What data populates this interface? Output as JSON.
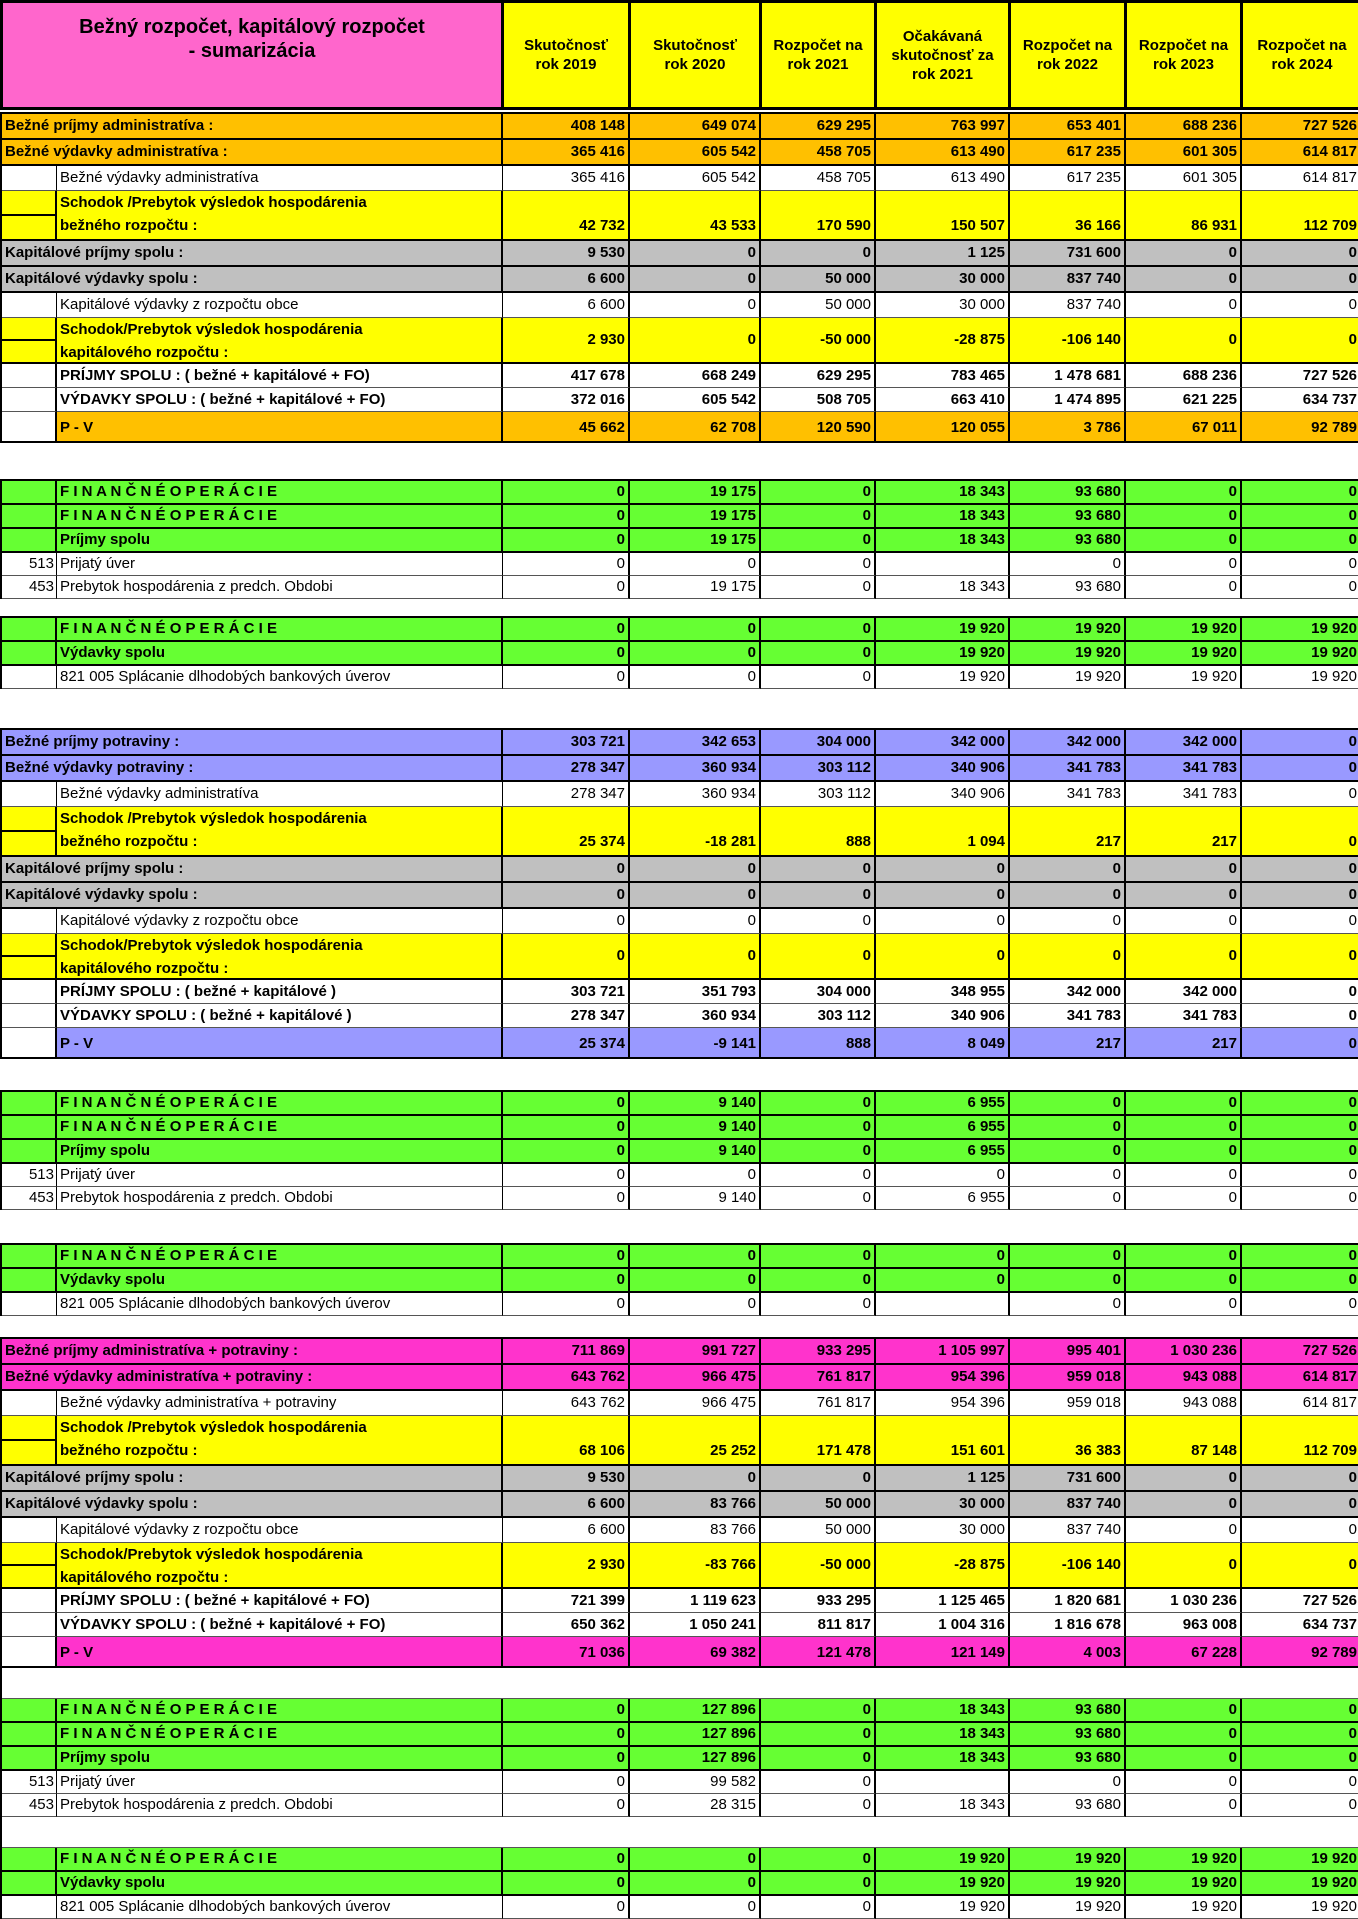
{
  "header": {
    "title": "Bežný rozpočet, kapitálový rozpočet\n -  sumarizácia",
    "columns": [
      "Skutočnosť\nrok 2019",
      "Skutočnosť\nrok 2020",
      "Rozpočet na\nrok 2021",
      "Očakávaná\nskutočnosť za\nrok 2021",
      "Rozpočet na\nrok 2022",
      "Rozpočet na\nrok 2023",
      "Rozpočet na\nrok 2024"
    ]
  },
  "colors": {
    "orange": "#FFC000",
    "grey": "#C0C0C0",
    "yellow": "#FFFF00",
    "green": "#66FF33",
    "purple": "#9999FF",
    "pink": "#FF33CC",
    "title_pink": "#FF66CC"
  },
  "blocks": [
    {
      "name": "administrativa-section",
      "rows": [
        {
          "kind": "head",
          "color": "orange",
          "label": "Bežné príjmy administratíva :",
          "values": [
            "408 148",
            "649 074",
            "629 295",
            "763 997",
            "653 401",
            "688 236",
            "727 526"
          ]
        },
        {
          "kind": "head",
          "color": "orange",
          "label": "Bežné výdavky administratíva :",
          "values": [
            "365 416",
            "605 542",
            "458 705",
            "613 490",
            "617 235",
            "601 305",
            "614 817"
          ]
        },
        {
          "kind": "item",
          "color": "white",
          "code": "",
          "label": "Bežné výdavky administratíva",
          "values": [
            "365 416",
            "605 542",
            "458 705",
            "613 490",
            "617 235",
            "601 305",
            "614 817"
          ]
        },
        {
          "kind": "y1",
          "color": "yellow",
          "label": "Schodok /Prebytok výsledok hospodárenia\nbežného rozpočtu :",
          "values": [
            "42 732",
            "43 533",
            "170 590",
            "150 507",
            "36 166",
            "86 931",
            "112 709"
          ]
        },
        {
          "kind": "head",
          "color": "grey",
          "label": "Kapitálové príjmy spolu :",
          "values": [
            "9 530",
            "0",
            "0",
            "1 125",
            "731 600",
            "0",
            "0"
          ]
        },
        {
          "kind": "head",
          "color": "grey",
          "label": "Kapitálové výdavky spolu :",
          "values": [
            "6 600",
            "0",
            "50 000",
            "30 000",
            "837 740",
            "0",
            "0"
          ]
        },
        {
          "kind": "item",
          "color": "white",
          "code": "",
          "label": "Kapitálové výdavky z rozpočtu obce",
          "values": [
            "6 600",
            "0",
            "50 000",
            "30 000",
            "837 740",
            "0",
            "0"
          ]
        },
        {
          "kind": "y2",
          "color": "yellow",
          "label": "Schodok/Prebytok výsledok hospodárenia\nkapitálového rozpočtu :",
          "values": [
            "2 930",
            "0",
            "-50 000",
            "-28 875",
            "-106 140",
            "0",
            "0"
          ]
        },
        {
          "kind": "tot",
          "color": "white",
          "code": "",
          "label": "PRÍJMY SPOLU : ( bežné + kapitálové + FO)",
          "values": [
            "417 678",
            "668 249",
            "629 295",
            "783 465",
            "1 478 681",
            "688 236",
            "727 526"
          ]
        },
        {
          "kind": "tot",
          "color": "white",
          "code": "",
          "label": "VÝDAVKY SPOLU : ( bežné + kapitálové + FO)",
          "values": [
            "372 016",
            "605 542",
            "508 705",
            "663 410",
            "1 474 895",
            "621 225",
            "634 737"
          ]
        },
        {
          "kind": "pv",
          "color": "orange",
          "label": "P - V",
          "values": [
            "45 662",
            "62 708",
            "120 590",
            "120 055",
            "3 786",
            "67 011",
            "92 789"
          ]
        }
      ]
    },
    {
      "name": "financne-operacie-prijmy-administrativa",
      "rows": [
        {
          "kind": "green",
          "color": "green",
          "label": "F I N A N  Č N É  O P E R Á C I E",
          "values": [
            "0",
            "19 175",
            "0",
            "18 343",
            "93 680",
            "0",
            "0"
          ]
        },
        {
          "kind": "green",
          "color": "green",
          "label": "F I N A N  Č N É  O P E R Á C I E",
          "values": [
            "0",
            "19 175",
            "0",
            "18 343",
            "93 680",
            "0",
            "0"
          ]
        },
        {
          "kind": "green",
          "color": "green",
          "label": "Príjmy spolu",
          "values": [
            "0",
            "19 175",
            "0",
            "18 343",
            "93 680",
            "0",
            "0"
          ]
        },
        {
          "kind": "code",
          "color": "white",
          "code": "513",
          "label": "Prijatý úver",
          "values": [
            "0",
            "0",
            "0",
            "",
            "0",
            "0",
            "0"
          ]
        },
        {
          "kind": "code",
          "color": "white",
          "code": "453",
          "label": "Prebytok hospodárenia z predch. Obdobi",
          "values": [
            "0",
            "19 175",
            "0",
            "18 343",
            "93 680",
            "0",
            "0"
          ]
        }
      ]
    },
    {
      "name": "financne-operacie-vydavky-administrativa",
      "rows": [
        {
          "kind": "green",
          "color": "green",
          "label": "F I N A N  Č N É  O P E R Á C I E",
          "values": [
            "0",
            "0",
            "0",
            "19 920",
            "19 920",
            "19 920",
            "19 920"
          ]
        },
        {
          "kind": "green",
          "color": "green",
          "label": "Výdavky spolu",
          "values": [
            "0",
            "0",
            "0",
            "19 920",
            "19 920",
            "19 920",
            "19 920"
          ]
        },
        {
          "kind": "code",
          "color": "white",
          "code": "",
          "label": "821 005 Splácanie dlhodobých bankových úverov",
          "values": [
            "0",
            "0",
            "0",
            "19 920",
            "19 920",
            "19 920",
            "19 920"
          ]
        }
      ]
    },
    {
      "name": "potraviny-section",
      "rows": [
        {
          "kind": "head",
          "color": "purple",
          "label": "Bežné príjmy potraviny :",
          "values": [
            "303 721",
            "342 653",
            "304 000",
            "342 000",
            "342 000",
            "342 000",
            "0"
          ]
        },
        {
          "kind": "head",
          "color": "purple",
          "label": "Bežné výdavky potraviny :",
          "values": [
            "278 347",
            "360 934",
            "303 112",
            "340 906",
            "341 783",
            "341 783",
            "0"
          ]
        },
        {
          "kind": "item",
          "color": "white",
          "code": "",
          "label": "Bežné výdavky administratíva",
          "values": [
            "278 347",
            "360 934",
            "303 112",
            "340 906",
            "341 783",
            "341 783",
            "0"
          ]
        },
        {
          "kind": "y1",
          "color": "yellow",
          "label": "Schodok /Prebytok výsledok hospodárenia\nbežného rozpočtu :",
          "values": [
            "25 374",
            "-18 281",
            "888",
            "1 094",
            "217",
            "217",
            "0"
          ]
        },
        {
          "kind": "head",
          "color": "grey",
          "label": "Kapitálové príjmy spolu :",
          "values": [
            "0",
            "0",
            "0",
            "0",
            "0",
            "0",
            "0"
          ]
        },
        {
          "kind": "head",
          "color": "grey",
          "label": "Kapitálové výdavky spolu :",
          "values": [
            "0",
            "0",
            "0",
            "0",
            "0",
            "0",
            "0"
          ]
        },
        {
          "kind": "item",
          "color": "white",
          "code": "",
          "label": "Kapitálové výdavky z rozpočtu obce",
          "values": [
            "0",
            "0",
            "0",
            "0",
            "0",
            "0",
            "0"
          ]
        },
        {
          "kind": "y2",
          "color": "yellow",
          "label": "Schodok/Prebytok výsledok hospodárenia\nkapitálového rozpočtu :",
          "values": [
            "0",
            "0",
            "0",
            "0",
            "0",
            "0",
            "0"
          ]
        },
        {
          "kind": "tot",
          "color": "white",
          "code": "",
          "label": "PRÍJMY SPOLU : ( bežné + kapitálové )",
          "values": [
            "303 721",
            "351 793",
            "304 000",
            "348 955",
            "342 000",
            "342 000",
            "0"
          ]
        },
        {
          "kind": "tot",
          "color": "white",
          "code": "",
          "label": "VÝDAVKY SPOLU : ( bežné + kapitálové )",
          "values": [
            "278 347",
            "360 934",
            "303 112",
            "340 906",
            "341 783",
            "341 783",
            "0"
          ]
        },
        {
          "kind": "pv",
          "color": "purple",
          "label": "P - V",
          "values": [
            "25 374",
            "-9 141",
            "888",
            "8 049",
            "217",
            "217",
            "0"
          ]
        }
      ]
    },
    {
      "name": "financne-operacie-prijmy-potraviny",
      "rows": [
        {
          "kind": "green",
          "color": "green",
          "label": "F I N A N  Č N É  O P E R Á C I E",
          "values": [
            "0",
            "9 140",
            "0",
            "6 955",
            "0",
            "0",
            "0"
          ]
        },
        {
          "kind": "green",
          "color": "green",
          "label": "F I N A N  Č N É  O P E R Á C I E",
          "values": [
            "0",
            "9 140",
            "0",
            "6 955",
            "0",
            "0",
            "0"
          ]
        },
        {
          "kind": "green",
          "color": "green",
          "label": "Príjmy spolu",
          "values": [
            "0",
            "9 140",
            "0",
            "6 955",
            "0",
            "0",
            "0"
          ]
        },
        {
          "kind": "code",
          "color": "white",
          "code": "513",
          "label": "Prijatý úver",
          "values": [
            "0",
            "0",
            "0",
            "0",
            "0",
            "0",
            "0"
          ]
        },
        {
          "kind": "code",
          "color": "white",
          "code": "453",
          "label": "Prebytok hospodárenia z predch. Obdobi",
          "values": [
            "0",
            "9 140",
            "0",
            "6 955",
            "0",
            "0",
            "0"
          ]
        }
      ]
    },
    {
      "name": "financne-operacie-vydavky-potraviny",
      "rows": [
        {
          "kind": "green",
          "color": "green",
          "label": "F I N A N  Č N É  O P E R Á C I E",
          "values": [
            "0",
            "0",
            "0",
            "0",
            "0",
            "0",
            "0"
          ]
        },
        {
          "kind": "green",
          "color": "green",
          "label": "Výdavky spolu",
          "values": [
            "0",
            "0",
            "0",
            "0",
            "0",
            "0",
            "0"
          ]
        },
        {
          "kind": "code",
          "color": "white",
          "code": "",
          "label": "821 005 Splácanie dlhodobých bankových úverov",
          "values": [
            "0",
            "0",
            "0",
            "",
            "0",
            "0",
            "0"
          ]
        }
      ]
    },
    {
      "name": "spacer",
      "rows": []
    },
    {
      "name": "sumar-section",
      "rows": [
        {
          "kind": "head",
          "color": "pink",
          "label": "Bežné príjmy administratíva + potraviny :",
          "values": [
            "711 869",
            "991 727",
            "933 295",
            "1 105 997",
            "995 401",
            "1 030 236",
            "727 526"
          ]
        },
        {
          "kind": "head",
          "color": "pink",
          "label": "Bežné výdavky administratíva + potraviny :",
          "values": [
            "643 762",
            "966 475",
            "761 817",
            "954 396",
            "959 018",
            "943 088",
            "614 817"
          ]
        },
        {
          "kind": "item",
          "color": "white",
          "code": "",
          "label": "Bežné výdavky administratíva + potraviny",
          "values": [
            "643 762",
            "966 475",
            "761 817",
            "954 396",
            "959 018",
            "943 088",
            "614 817"
          ]
        },
        {
          "kind": "y1",
          "color": "yellow",
          "label": "Schodok /Prebytok výsledok hospodárenia\nbežného rozpočtu :",
          "values": [
            "68 106",
            "25 252",
            "171 478",
            "151 601",
            "36 383",
            "87 148",
            "112 709"
          ]
        },
        {
          "kind": "head",
          "color": "grey",
          "label": "Kapitálové príjmy spolu :",
          "values": [
            "9 530",
            "0",
            "0",
            "1 125",
            "731 600",
            "0",
            "0"
          ]
        },
        {
          "kind": "head",
          "color": "grey",
          "label": "Kapitálové výdavky spolu :",
          "values": [
            "6 600",
            "83 766",
            "50 000",
            "30 000",
            "837 740",
            "0",
            "0"
          ]
        },
        {
          "kind": "item",
          "color": "white",
          "code": "",
          "label": "Kapitálové výdavky z rozpočtu obce",
          "values": [
            "6 600",
            "83 766",
            "50 000",
            "30 000",
            "837 740",
            "0",
            "0"
          ]
        },
        {
          "kind": "y2",
          "color": "yellow",
          "label": "Schodok/Prebytok výsledok hospodárenia\nkapitálového rozpočtu :",
          "values": [
            "2 930",
            "-83 766",
            "-50 000",
            "-28 875",
            "-106 140",
            "0",
            "0"
          ]
        },
        {
          "kind": "tot",
          "color": "white",
          "code": "",
          "label": "PRÍJMY SPOLU : ( bežné + kapitálové + FO)",
          "values": [
            "721 399",
            "1 119 623",
            "933 295",
            "1 125 465",
            "1 820 681",
            "1 030 236",
            "727 526"
          ]
        },
        {
          "kind": "tot",
          "color": "white",
          "code": "",
          "label": "VÝDAVKY SPOLU : ( bežné + kapitálové + FO)",
          "values": [
            "650 362",
            "1 050 241",
            "811 817",
            "1 004 316",
            "1 816 678",
            "963 008",
            "634 737"
          ]
        },
        {
          "kind": "pv",
          "color": "pink",
          "label": "P - V",
          "values": [
            "71 036",
            "69 382",
            "121 478",
            "121 149",
            "4 003",
            "67 228",
            "92 789"
          ]
        },
        {
          "kind": "blank",
          "color": "white"
        },
        {
          "kind": "green",
          "color": "green",
          "label": "F I N A N  Č N É  O P E R Á C I E",
          "values": [
            "0",
            "127 896",
            "0",
            "18 343",
            "93 680",
            "0",
            "0"
          ]
        },
        {
          "kind": "green",
          "color": "green",
          "label": "F I N A N  Č N É  O P E R Á C I E",
          "values": [
            "0",
            "127 896",
            "0",
            "18 343",
            "93 680",
            "0",
            "0"
          ]
        },
        {
          "kind": "green",
          "color": "green",
          "label": "Príjmy spolu",
          "values": [
            "0",
            "127 896",
            "0",
            "18 343",
            "93 680",
            "0",
            "0"
          ]
        },
        {
          "kind": "code",
          "color": "white",
          "code": "513",
          "label": "Prijatý úver",
          "values": [
            "0",
            "99 582",
            "0",
            "",
            "0",
            "0",
            "0"
          ]
        },
        {
          "kind": "code",
          "color": "white",
          "code": "453",
          "label": "Prebytok hospodárenia z predch. Obdobi",
          "values": [
            "0",
            "28 315",
            "0",
            "18 343",
            "93 680",
            "0",
            "0"
          ]
        },
        {
          "kind": "blank",
          "color": "white"
        },
        {
          "kind": "green",
          "color": "green",
          "label": "F I N A N  Č N É  O P E R Á C I E",
          "values": [
            "0",
            "0",
            "0",
            "19 920",
            "19 920",
            "19 920",
            "19 920"
          ]
        },
        {
          "kind": "green",
          "color": "green",
          "label": "Výdavky spolu",
          "values": [
            "0",
            "0",
            "0",
            "19 920",
            "19 920",
            "19 920",
            "19 920"
          ]
        },
        {
          "kind": "code",
          "color": "white",
          "code": "",
          "label": "821 005 Splácanie dlhodobých bankových úverov",
          "values": [
            "0",
            "0",
            "0",
            "19 920",
            "19 920",
            "19 920",
            "19 920"
          ]
        }
      ]
    }
  ]
}
